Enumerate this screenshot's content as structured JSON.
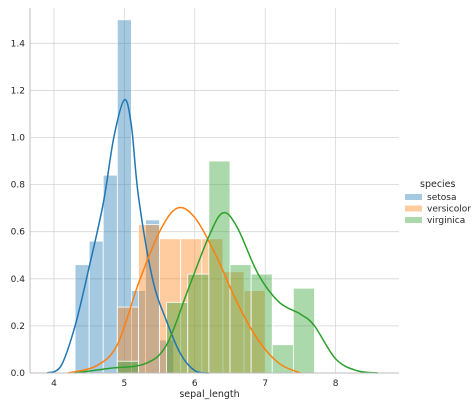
{
  "chart_data": {
    "type": "histogram+kde",
    "xlabel": "sepal_length",
    "ylabel": "",
    "xlim": [
      3.66,
      8.9
    ],
    "ylim": [
      0,
      1.55
    ],
    "x_ticks": [
      4,
      5,
      6,
      7,
      8
    ],
    "x_tick_labels": [
      "4",
      "5",
      "6",
      "7",
      "8"
    ],
    "y_ticks": [
      0.0,
      0.2,
      0.4,
      0.6,
      0.8,
      1.0,
      1.2,
      1.4
    ],
    "y_tick_labels": [
      "0.0",
      "0.2",
      "0.4",
      "0.6",
      "0.8",
      "1.0",
      "1.2",
      "1.4"
    ],
    "grid": true,
    "legend": {
      "title": "species",
      "placement": "right"
    },
    "series": [
      {
        "name": "setosa",
        "color": "#1f77b4",
        "bin_width": 0.2,
        "bins": [
          {
            "x0": 4.3,
            "height": 0.46
          },
          {
            "x0": 4.5,
            "height": 0.56
          },
          {
            "x0": 4.7,
            "height": 0.84
          },
          {
            "x0": 4.9,
            "height": 1.5
          },
          {
            "x0": 5.1,
            "height": 0.35
          },
          {
            "x0": 5.3,
            "height": 0.65
          },
          {
            "x0": 5.5,
            "height": 0.14
          }
        ],
        "kde": [
          [
            3.9,
            0.0
          ],
          [
            4.1,
            0.03
          ],
          [
            4.3,
            0.2
          ],
          [
            4.5,
            0.45
          ],
          [
            4.7,
            0.72
          ],
          [
            4.85,
            1.0
          ],
          [
            5.0,
            1.16
          ],
          [
            5.1,
            1.05
          ],
          [
            5.2,
            0.75
          ],
          [
            5.4,
            0.4
          ],
          [
            5.6,
            0.22
          ],
          [
            5.8,
            0.08
          ],
          [
            6.0,
            0.01
          ],
          [
            6.2,
            0.0
          ]
        ]
      },
      {
        "name": "versicolor",
        "color": "#ff7f0e",
        "bin_width": 0.3,
        "bins": [
          {
            "x0": 4.9,
            "height": 0.28
          },
          {
            "x0": 5.2,
            "height": 0.63
          },
          {
            "x0": 5.5,
            "height": 0.57
          },
          {
            "x0": 5.8,
            "height": 0.57
          },
          {
            "x0": 6.1,
            "height": 0.57
          },
          {
            "x0": 6.4,
            "height": 0.43
          },
          {
            "x0": 6.7,
            "height": 0.35
          }
        ],
        "kde": [
          [
            4.2,
            0.0
          ],
          [
            4.6,
            0.03
          ],
          [
            4.9,
            0.12
          ],
          [
            5.2,
            0.38
          ],
          [
            5.5,
            0.6
          ],
          [
            5.75,
            0.7
          ],
          [
            6.0,
            0.66
          ],
          [
            6.3,
            0.5
          ],
          [
            6.6,
            0.3
          ],
          [
            6.9,
            0.14
          ],
          [
            7.2,
            0.04
          ],
          [
            7.5,
            0.0
          ]
        ]
      },
      {
        "name": "virginica",
        "color": "#2ca02c",
        "bin_width": 0.3,
        "bins": [
          {
            "x0": 4.9,
            "height": 0.05
          },
          {
            "x0": 5.6,
            "height": 0.3
          },
          {
            "x0": 5.9,
            "height": 0.42
          },
          {
            "x0": 6.2,
            "height": 0.9
          },
          {
            "x0": 6.5,
            "height": 0.46
          },
          {
            "x0": 6.8,
            "height": 0.42
          },
          {
            "x0": 7.1,
            "height": 0.12
          },
          {
            "x0": 7.4,
            "height": 0.36
          }
        ],
        "kde": [
          [
            4.3,
            0.0
          ],
          [
            4.8,
            0.02
          ],
          [
            5.3,
            0.04
          ],
          [
            5.6,
            0.12
          ],
          [
            5.9,
            0.35
          ],
          [
            6.2,
            0.58
          ],
          [
            6.4,
            0.68
          ],
          [
            6.6,
            0.62
          ],
          [
            6.9,
            0.42
          ],
          [
            7.2,
            0.3
          ],
          [
            7.5,
            0.25
          ],
          [
            7.7,
            0.2
          ],
          [
            8.0,
            0.06
          ],
          [
            8.3,
            0.01
          ],
          [
            8.6,
            0.0
          ]
        ]
      }
    ]
  }
}
